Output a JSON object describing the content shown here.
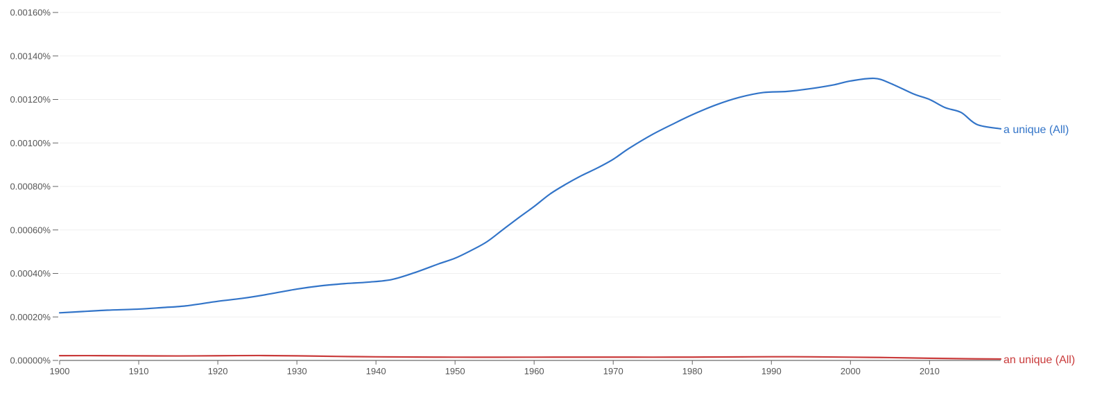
{
  "chart_data": {
    "type": "line",
    "title": "",
    "xlabel": "",
    "ylabel": "",
    "xlim": [
      1900,
      2019
    ],
    "ylim": [
      0,
      0.0016
    ],
    "grid": true,
    "legend": "inline at line ends, right",
    "x_ticks": [
      "1900",
      "1910",
      "1920",
      "1930",
      "1940",
      "1950",
      "1960",
      "1970",
      "1980",
      "1990",
      "2000",
      "2010"
    ],
    "y_ticks": [
      "0.00000%",
      "0.00020%",
      "0.00040%",
      "0.00060%",
      "0.00080%",
      "0.00100%",
      "0.00120%",
      "0.00140%",
      "0.00160%"
    ],
    "series": [
      {
        "name": "a unique (All)",
        "color": "#3274c8",
        "points": [
          [
            1900,
            0.000219
          ],
          [
            1903,
            0.000225
          ],
          [
            1906,
            0.000231
          ],
          [
            1910,
            0.000236
          ],
          [
            1913,
            0.000243
          ],
          [
            1916,
            0.000251
          ],
          [
            1920,
            0.000272
          ],
          [
            1923,
            0.000285
          ],
          [
            1926,
            0.000302
          ],
          [
            1930,
            0.000328
          ],
          [
            1933,
            0.000343
          ],
          [
            1936,
            0.000353
          ],
          [
            1939,
            0.00036
          ],
          [
            1942,
            0.000372
          ],
          [
            1945,
            0.000405
          ],
          [
            1948,
            0.000445
          ],
          [
            1950,
            0.00047
          ],
          [
            1952,
            0.000505
          ],
          [
            1954,
            0.000545
          ],
          [
            1956,
            0.0006
          ],
          [
            1958,
            0.000655
          ],
          [
            1960,
            0.000708
          ],
          [
            1962,
            0.000765
          ],
          [
            1964,
            0.00081
          ],
          [
            1966,
            0.00085
          ],
          [
            1968,
            0.000885
          ],
          [
            1970,
            0.000925
          ],
          [
            1972,
            0.000975
          ],
          [
            1975,
            0.00104
          ],
          [
            1978,
            0.001095
          ],
          [
            1980,
            0.00113
          ],
          [
            1983,
            0.001175
          ],
          [
            1986,
            0.00121
          ],
          [
            1989,
            0.001232
          ],
          [
            1992,
            0.001237
          ],
          [
            1995,
            0.00125
          ],
          [
            1998,
            0.001268
          ],
          [
            2000,
            0.001285
          ],
          [
            2003,
            0.001297
          ],
          [
            2005,
            0.001275
          ],
          [
            2008,
            0.001225
          ],
          [
            2010,
            0.0012
          ],
          [
            2012,
            0.001162
          ],
          [
            2014,
            0.00114
          ],
          [
            2016,
            0.001085
          ],
          [
            2019,
            0.001065
          ]
        ]
      },
      {
        "name": "an unique (All)",
        "color": "#c93a3a",
        "points": [
          [
            1900,
            2.2e-05
          ],
          [
            1905,
            2.2e-05
          ],
          [
            1910,
            2.1e-05
          ],
          [
            1915,
            2.05e-05
          ],
          [
            1920,
            2.15e-05
          ],
          [
            1925,
            2.25e-05
          ],
          [
            1930,
            2.1e-05
          ],
          [
            1935,
            1.85e-05
          ],
          [
            1940,
            1.65e-05
          ],
          [
            1945,
            1.55e-05
          ],
          [
            1950,
            1.5e-05
          ],
          [
            1955,
            1.48e-05
          ],
          [
            1960,
            1.5e-05
          ],
          [
            1965,
            1.52e-05
          ],
          [
            1970,
            1.52e-05
          ],
          [
            1975,
            1.5e-05
          ],
          [
            1980,
            1.52e-05
          ],
          [
            1985,
            1.6e-05
          ],
          [
            1990,
            1.7e-05
          ],
          [
            1995,
            1.65e-05
          ],
          [
            2000,
            1.5e-05
          ],
          [
            2005,
            1.3e-05
          ],
          [
            2010,
            1e-05
          ],
          [
            2015,
            7.5e-06
          ],
          [
            2019,
            6.5e-06
          ]
        ]
      }
    ]
  }
}
